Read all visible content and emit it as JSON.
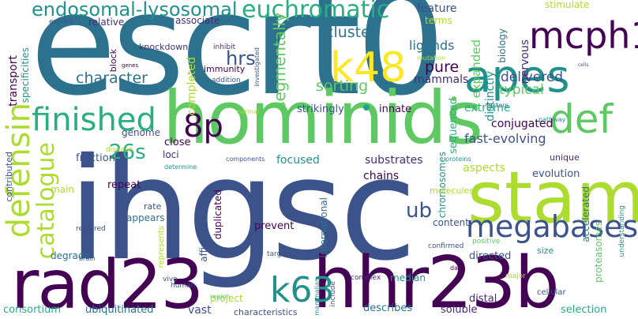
{
  "palette": {
    "dark_purple": "#440154",
    "purple": "#472c7a",
    "indigo": "#3b528b",
    "blue": "#31688e",
    "teal_blue": "#2c728e",
    "teal": "#21918c",
    "sea_green": "#28ae80",
    "green": "#5ec962",
    "lime": "#addc30",
    "yellow": "#fde725",
    "dot_teal": "#20a486",
    "dot_green": "#5ec962"
  },
  "words": [
    "escrt0",
    "ihgsc",
    "hominids",
    "stam",
    "rad23",
    "hhr23b",
    "defensin",
    "finished",
    "apes",
    "k48",
    "mcph1",
    "megabases",
    "def",
    "catalogue",
    "euchromatic",
    "endosomal-lysosomal",
    "8p",
    "k63",
    "26s",
    "ub",
    "hrs",
    "segmentally",
    "character",
    "cluster",
    "ligands",
    "pure",
    "sorting",
    "delivered",
    "typical",
    "expanded",
    "distinctly",
    "nervous",
    "feature",
    "terms",
    "stimulate",
    "biology",
    "mammals",
    "completed",
    "transport",
    "specificities",
    "relative",
    "associate",
    "exhibit",
    "knockdown",
    "block",
    "genes",
    "inhibit",
    "immunity",
    "addition",
    "investigated",
    "mutation",
    "cells",
    "factors",
    "pathway",
    "strikingly",
    "innate",
    "extreme",
    "conjugated",
    "fast-evolving",
    "aspects",
    "unique",
    "evolution",
    "genome",
    "close",
    "fraction",
    "loci",
    "repeat",
    "main",
    "rate",
    "appears",
    "focused",
    "substrates",
    "chains",
    "chromosomes",
    "international",
    "content",
    "molecules",
    "duplicated",
    "affinity",
    "degrade",
    "proteasomes",
    "accelerated",
    "selection",
    "soluble",
    "distal",
    "describes",
    "median",
    "project",
    "vast",
    "consortium",
    "ubiquitinated",
    "characteristics",
    "include",
    "mammalian",
    "cellular",
    "major",
    "human",
    "bind",
    "region",
    "disease",
    "determine",
    "components",
    "proteins",
    "sequenced",
    "contributed",
    "brain",
    "required",
    "represents",
    "vivo",
    "prevent",
    "targeted",
    "complex",
    "data",
    "confirmed",
    "positive",
    "directed",
    "size",
    "understanding",
    "normal"
  ]
}
